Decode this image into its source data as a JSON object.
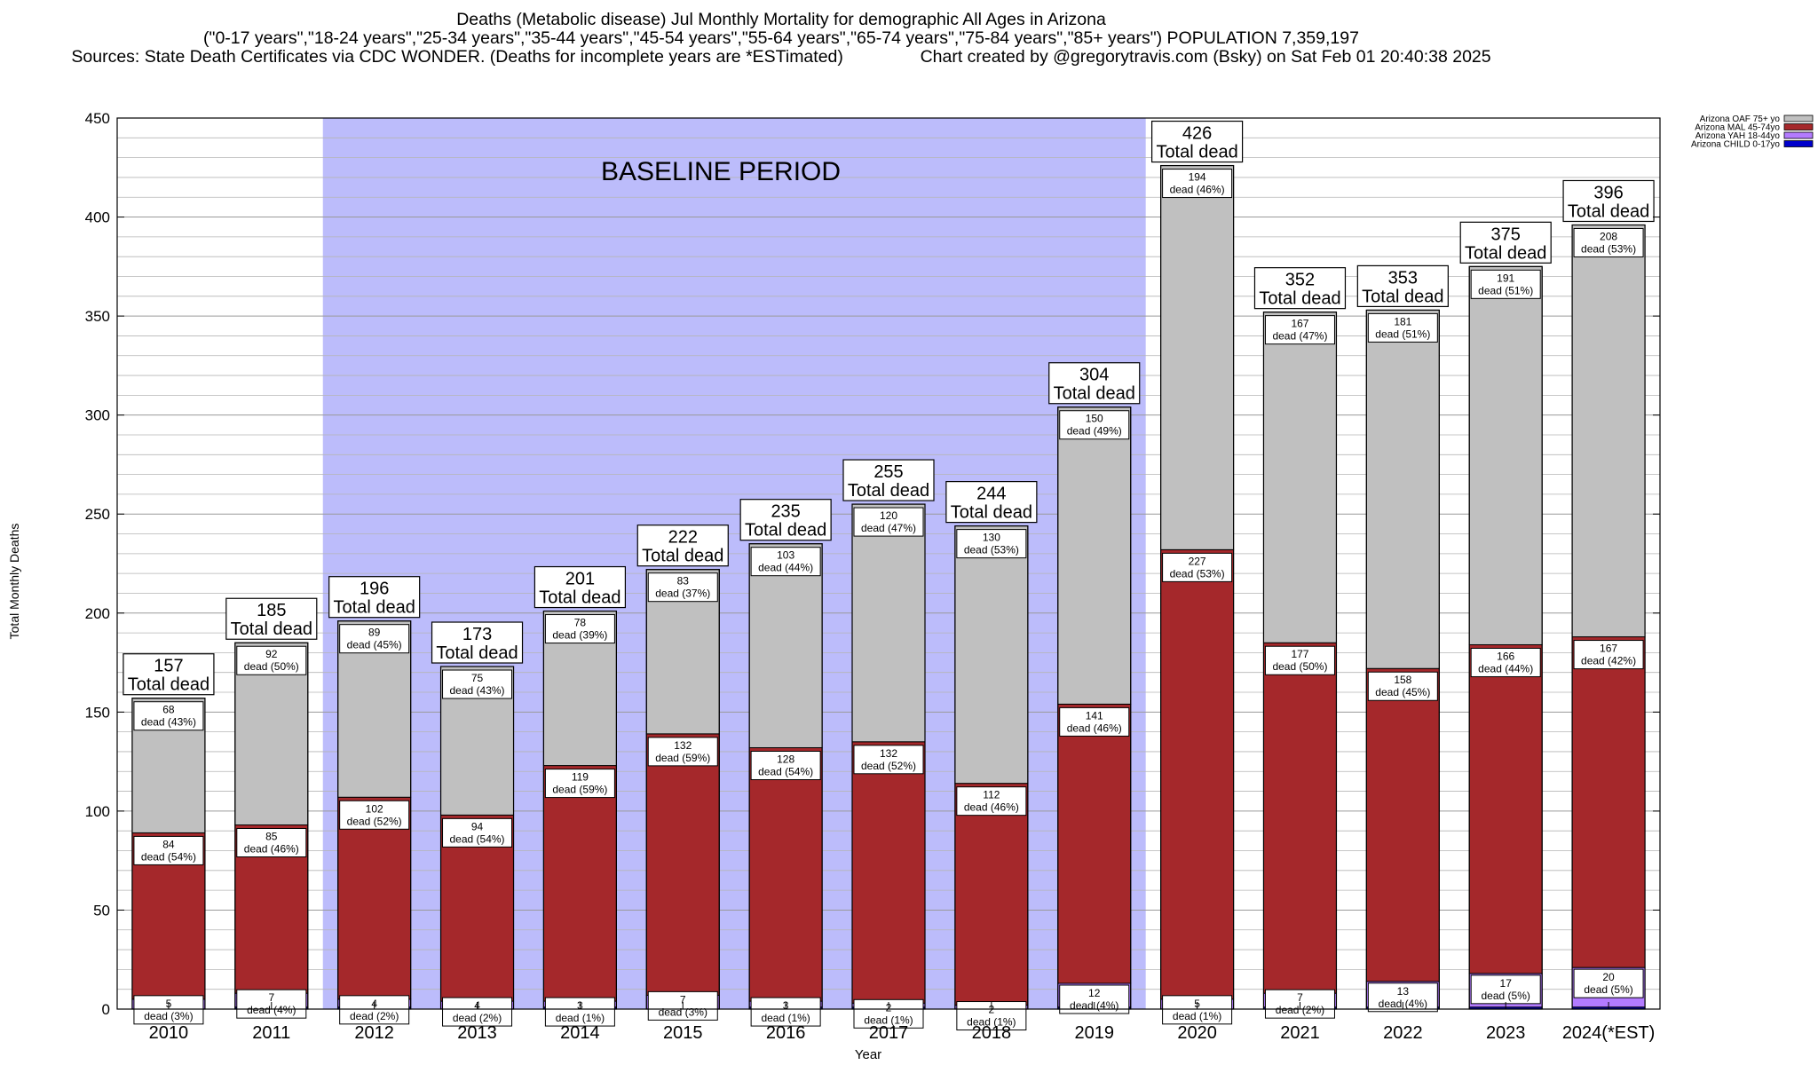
{
  "chart_data": {
    "type": "bar",
    "stacked": true,
    "title_lines": [
      "Deaths (Metabolic disease) Jul Monthly Mortality for demographic All Ages in Arizona",
      "(\"0-17 years\",\"18-24 years\",\"25-34 years\",\"35-44 years\",\"45-54 years\",\"55-64 years\",\"65-74 years\",\"75-84 years\",\"85+ years\") POPULATION 7,359,197",
      "Sources: State Death Certificates via CDC WONDER. (Deaths for incomplete years are *ESTimated)                Chart created by @gregorytravis.com (Bsky) on Sat Feb 01 20:40:38 2025"
    ],
    "xlabel": "Year",
    "ylabel": "Total Monthly Deaths",
    "ylim": [
      0,
      450
    ],
    "y_ticks": [
      0,
      50,
      100,
      150,
      200,
      250,
      300,
      350,
      400,
      450
    ],
    "grid": "horizontal",
    "legend_position": "top-right",
    "baseline_label": "BASELINE PERIOD",
    "baseline_range": [
      "2012",
      "2019"
    ],
    "total_suffix": "Total dead",
    "dead_prefix": "dead",
    "categories": [
      "2010",
      "2011",
      "2012",
      "2013",
      "2014",
      "2015",
      "2016",
      "2017",
      "2018",
      "2019",
      "2020",
      "2021",
      "2022",
      "2023",
      "2024(*EST)"
    ],
    "totals": [
      157,
      185,
      196,
      173,
      201,
      222,
      235,
      255,
      244,
      304,
      426,
      352,
      353,
      375,
      396
    ],
    "series": [
      {
        "name": "Arizona CHILD 0-17yo",
        "color": "#0000cc",
        "values": [
          0,
          1,
          1,
          0,
          1,
          0,
          1,
          1,
          0,
          1,
          0,
          1,
          1,
          1,
          1
        ],
        "labels": [
          "",
          "",
          "",
          "",
          "",
          "",
          "",
          "",
          "",
          "",
          "",
          "",
          "",
          "",
          ""
        ]
      },
      {
        "name": "Arizona YAH 18-44yo",
        "color": "#b37bff",
        "values": [
          5,
          7,
          4,
          4,
          3,
          7,
          3,
          2,
          2,
          12,
          5,
          7,
          13,
          17,
          20
        ],
        "labels": [
          "(3%)",
          "(4%)",
          "(2%)",
          "(2%)",
          "(1%)",
          "(3%)",
          "(1%)",
          "(1%)",
          "(1%)",
          "(4%)",
          "(1%)",
          "(2%)",
          "(4%)",
          "(5%)",
          "(5%)"
        ]
      },
      {
        "name": "Arizona MAL 45-74yo",
        "color": "#a5282b",
        "values": [
          84,
          85,
          102,
          94,
          119,
          132,
          128,
          132,
          112,
          141,
          227,
          177,
          158,
          166,
          167
        ],
        "labels": [
          "(54%)",
          "(46%)",
          "(52%)",
          "(54%)",
          "(59%)",
          "(59%)",
          "(54%)",
          "(52%)",
          "(46%)",
          "(46%)",
          "(53%)",
          "(50%)",
          "(45%)",
          "(44%)",
          "(42%)"
        ]
      },
      {
        "name": "Arizona OAF 75+ yo",
        "color": "#c0c0c0",
        "values": [
          68,
          92,
          89,
          75,
          78,
          83,
          103,
          120,
          130,
          150,
          194,
          167,
          181,
          191,
          208
        ],
        "labels": [
          "(43%)",
          "(50%)",
          "(45%)",
          "(43%)",
          "(39%)",
          "(37%)",
          "(44%)",
          "(47%)",
          "(53%)",
          "(49%)",
          "(46%)",
          "(47%)",
          "(51%)",
          "(51%)",
          "(53%)"
        ]
      }
    ]
  }
}
